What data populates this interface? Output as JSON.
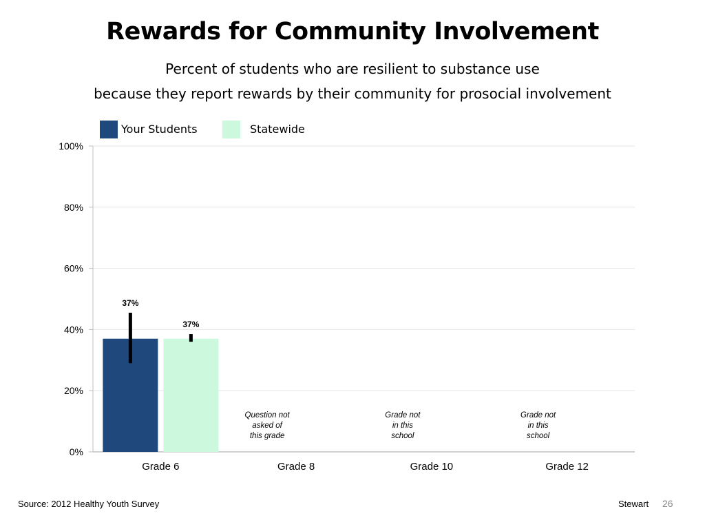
{
  "title": "Rewards for Community Involvement",
  "subtitle_line1": "Percent of students who are resilient to substance use",
  "subtitle_line2": "because they report rewards by their community for prosocial involvement",
  "colors": {
    "your_students": "#1f497d",
    "statewide": "#ccf9dd",
    "grid": "#e6e6e6",
    "axis": "#bfbfbf",
    "error_bar": "#000000"
  },
  "chart_data": {
    "type": "bar",
    "categories": [
      "Grade 6",
      "Grade 8",
      "Grade 10",
      "Grade 12"
    ],
    "series": [
      {
        "name": "Your Students",
        "values": [
          37,
          null,
          null,
          null
        ],
        "error": [
          [
            29,
            45.5
          ],
          null,
          null,
          null
        ],
        "labels": [
          "37%",
          "",
          "",
          ""
        ]
      },
      {
        "name": "Statewide",
        "values": [
          37,
          null,
          null,
          null
        ],
        "error": [
          [
            36,
            38.5
          ],
          null,
          null,
          null
        ],
        "labels": [
          "37%",
          "",
          "",
          ""
        ]
      }
    ],
    "ylim": [
      0,
      100
    ],
    "yticks": [
      0,
      20,
      40,
      60,
      80,
      100
    ],
    "ytick_labels": [
      "0%",
      "20%",
      "40%",
      "60%",
      "80%",
      "100%"
    ],
    "grid": true,
    "legend_position": "top-left",
    "notes": [
      "",
      "Question not asked of this grade",
      "Grade not in this school",
      "Grade not in this school"
    ]
  },
  "footer": {
    "source": "Source: 2012 Healthy Youth Survey",
    "author": "Stewart",
    "page": "26"
  }
}
